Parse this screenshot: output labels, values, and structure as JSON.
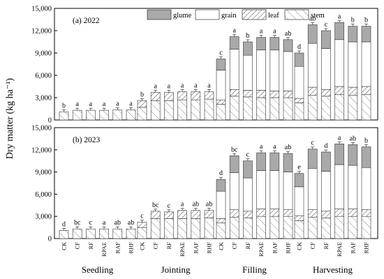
{
  "chart_data": {
    "type": "bar",
    "stacked": true,
    "ylabel": "Dry matter (kg ha⁻¹)",
    "ylim": [
      0,
      15000
    ],
    "yticks": [
      "0",
      "3,000",
      "6,000",
      "9,000",
      "12,000",
      "15,000"
    ],
    "ytick_values": [
      0,
      3000,
      6000,
      9000,
      12000,
      15000
    ],
    "stages": [
      "Seedling",
      "Jointing",
      "Filling",
      "Harvesting"
    ],
    "treatments": [
      "CK",
      "CF",
      "RF",
      "RPAE",
      "RAF",
      "RHF"
    ],
    "legend": [
      "glume",
      "grain",
      "leaf",
      "stem"
    ],
    "legend_position": "top-right",
    "colors": {
      "glume": "#a9a9a9",
      "grain": "#ffffff",
      "leaf": "#ffffff",
      "stem": "#ffffff",
      "edge": "#333333"
    },
    "panels": [
      {
        "label": "(a) 2022",
        "stages": [
          {
            "name": "Seedling",
            "stem": [
              1100,
              1300,
              1300,
              1300,
              1350,
              1350
            ],
            "leaf": [
              0,
              0,
              0,
              0,
              0,
              0
            ],
            "grain": [
              0,
              0,
              0,
              0,
              0,
              0
            ],
            "glume": [
              0,
              0,
              0,
              0,
              0,
              0
            ],
            "letters": [
              "b",
              "a",
              "a",
              "a",
              "a",
              "a"
            ]
          },
          {
            "name": "Jointing",
            "stem": [
              1700,
              2600,
              2600,
              2700,
              2700,
              2800
            ],
            "leaf": [
              900,
              1100,
              1100,
              1100,
              1100,
              1000
            ],
            "grain": [
              0,
              0,
              0,
              0,
              0,
              0
            ],
            "glume": [
              0,
              0,
              0,
              0,
              0,
              0
            ],
            "letters": [
              "b",
              "a",
              "a",
              "a",
              "a",
              "a"
            ]
          },
          {
            "name": "Filling",
            "stem": [
              2100,
              3200,
              3100,
              3000,
              3000,
              3000
            ],
            "leaf": [
              600,
              900,
              900,
              1000,
              900,
              900
            ],
            "grain": [
              4000,
              5400,
              4700,
              5400,
              5500,
              5300
            ],
            "glume": [
              1500,
              1700,
              1800,
              1700,
              1700,
              1600
            ],
            "letters": [
              "c",
              "a",
              "b",
              "a",
              "a",
              "ab"
            ]
          },
          {
            "name": "Harvesting",
            "stem": [
              2300,
              3300,
              3200,
              3400,
              3300,
              3400
            ],
            "leaf": [
              600,
              1100,
              900,
              1100,
              1100,
              1100
            ],
            "grain": [
              4300,
              5900,
              5500,
              6300,
              6100,
              6000
            ],
            "glume": [
              1800,
              2500,
              2400,
              2300,
              2100,
              2100
            ],
            "letters": [
              "d",
              "ab",
              "c",
              "a",
              "b",
              "b"
            ]
          }
        ]
      },
      {
        "label": "(b) 2023",
        "stages": [
          {
            "name": "Seedling",
            "stem": [
              1100,
              1300,
              1300,
              1300,
              1300,
              1300
            ],
            "leaf": [
              0,
              0,
              0,
              0,
              0,
              0
            ],
            "grain": [
              0,
              0,
              0,
              0,
              0,
              0
            ],
            "glume": [
              0,
              0,
              0,
              0,
              0,
              0
            ],
            "letters": [
              "d",
              "bc",
              "c",
              "a",
              "ab",
              "ab"
            ]
          },
          {
            "name": "Jointing",
            "stem": [
              1500,
              2700,
              2700,
              2700,
              2700,
              2800
            ],
            "leaf": [
              700,
              1000,
              900,
              1100,
              1100,
              1000
            ],
            "grain": [
              0,
              0,
              0,
              0,
              0,
              0
            ],
            "glume": [
              0,
              0,
              0,
              0,
              0,
              0
            ],
            "letters": [
              "c",
              "bc",
              "c",
              "a",
              "ab",
              "ab"
            ]
          },
          {
            "name": "Filling",
            "stem": [
              2100,
              2900,
              2800,
              3000,
              3000,
              3000
            ],
            "leaf": [
              600,
              1000,
              900,
              1000,
              1000,
              900
            ],
            "grain": [
              3700,
              5000,
              4500,
              5200,
              5200,
              5100
            ],
            "glume": [
              1600,
              2300,
              2300,
              2400,
              2400,
              2500
            ],
            "letters": [
              "d",
              "bc",
              "c",
              "a",
              "a",
              "ab"
            ]
          },
          {
            "name": "Harvesting",
            "stem": [
              2400,
              2900,
              2800,
              3000,
              3000,
              3000
            ],
            "leaf": [
              700,
              1000,
              900,
              1000,
              1000,
              900
            ],
            "grain": [
              3900,
              5600,
              5400,
              6000,
              5900,
              5700
            ],
            "glume": [
              1800,
              2600,
              2600,
              2800,
              2800,
              2800
            ],
            "letters": [
              "e",
              "c",
              "d",
              "a",
              "ab",
              "b"
            ]
          }
        ]
      }
    ]
  }
}
